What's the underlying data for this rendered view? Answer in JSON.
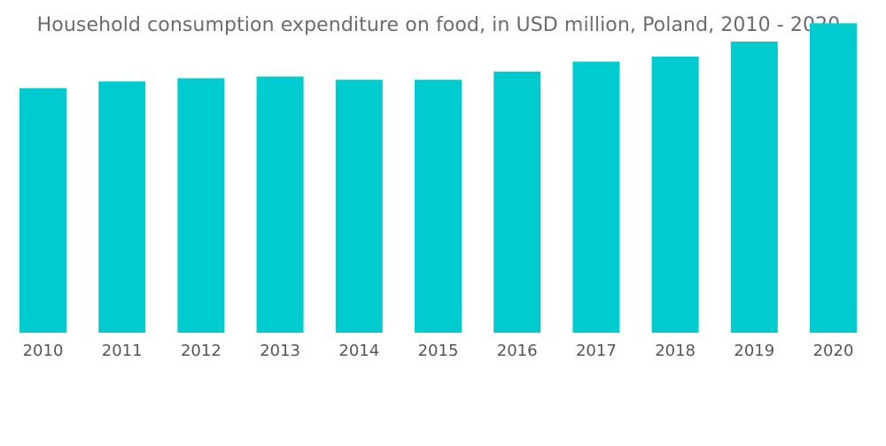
{
  "chart_data": {
    "type": "bar",
    "title": "Household consumption expenditure on food, in USD million, Poland, 2010 - 2020",
    "xlabel": "",
    "ylabel": "",
    "categories": [
      "2010",
      "2011",
      "2012",
      "2013",
      "2014",
      "2015",
      "2016",
      "2017",
      "2018",
      "2019",
      "2020"
    ],
    "series": [
      {
        "name": "Household consumption expenditure on food",
        "values": [
          73.5,
          75.5,
          76.5,
          77.0,
          76.0,
          76.0,
          78.5,
          81.5,
          83.0,
          87.5,
          93.0
        ]
      }
    ],
    "ylim": [
      0,
      100
    ],
    "grid": false,
    "legend": "none",
    "bar_color": "#00cccf",
    "title_color": "#6b6b6b",
    "tick_color": "#555555"
  }
}
